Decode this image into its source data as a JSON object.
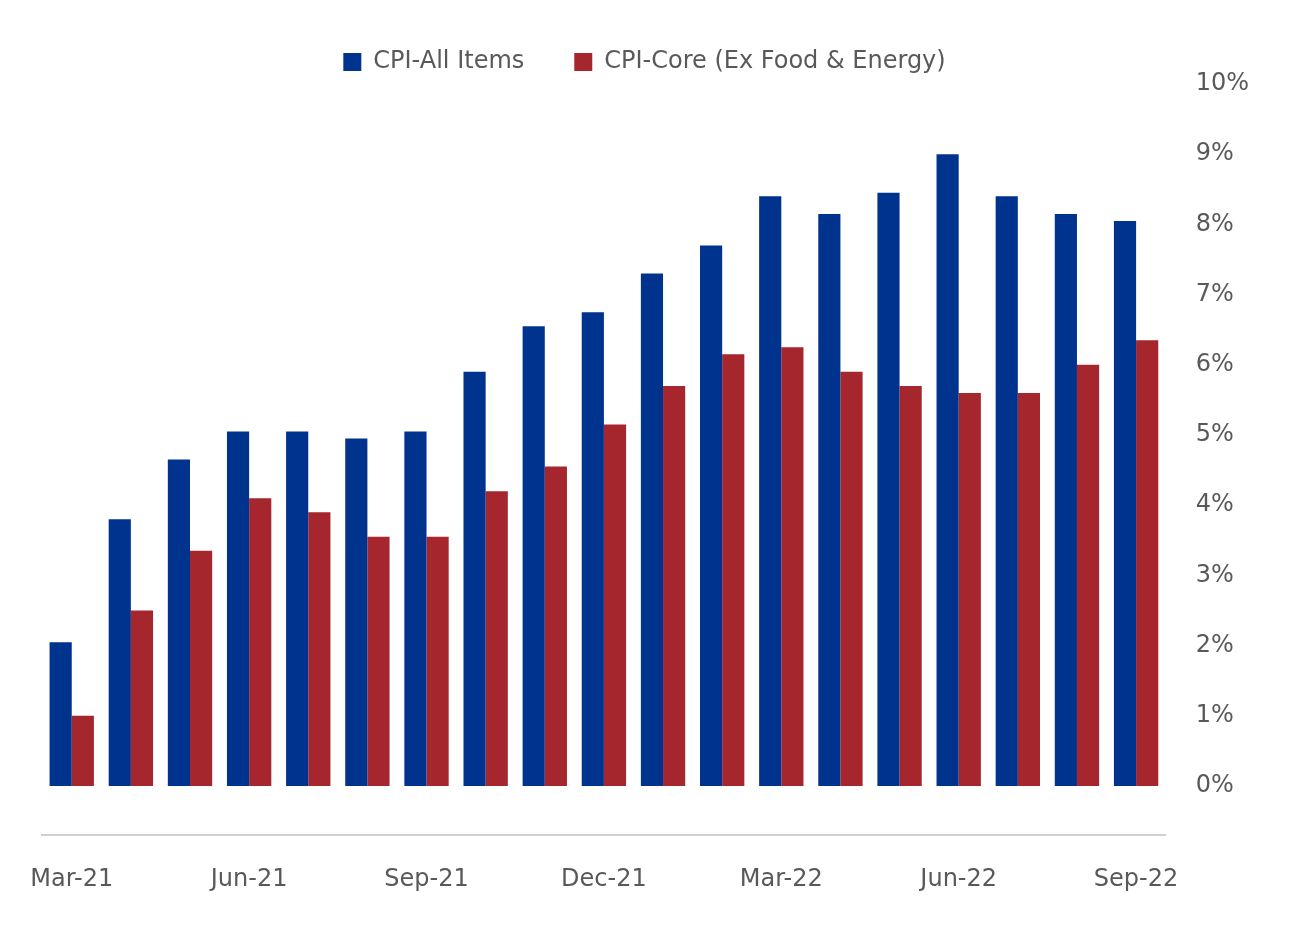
{
  "chart_data": {
    "type": "bar",
    "categories": [
      "Mar-21",
      null,
      null,
      "Jun-21",
      null,
      null,
      "Sep-21",
      null,
      null,
      "Dec-21",
      null,
      null,
      "Mar-22",
      null,
      null,
      "Jun-22",
      null,
      null,
      "Sep-22"
    ],
    "series": [
      {
        "name": "CPI-All Items",
        "color": "#00338d",
        "values": [
          2.05,
          3.8,
          4.65,
          5.05,
          5.05,
          4.95,
          5.05,
          5.9,
          6.55,
          6.75,
          7.3,
          7.7,
          8.4,
          8.15,
          8.45,
          9.0,
          8.4,
          8.15,
          8.05
        ]
      },
      {
        "name": "CPI-Core (Ex Food & Energy)",
        "color": "#a6262e",
        "values": [
          1.0,
          2.5,
          3.35,
          4.1,
          3.9,
          3.55,
          3.55,
          4.2,
          4.55,
          5.15,
          5.7,
          6.15,
          6.25,
          5.9,
          5.7,
          5.6,
          5.6,
          6.0,
          6.35
        ]
      }
    ],
    "ylim": [
      -0.7,
      10
    ],
    "yticks": [
      {
        "value": 0,
        "label": "0%"
      },
      {
        "value": 1,
        "label": "1%"
      },
      {
        "value": 2,
        "label": "2%"
      },
      {
        "value": 3,
        "label": "3%"
      },
      {
        "value": 4,
        "label": "4%"
      },
      {
        "value": 5,
        "label": "5%"
      },
      {
        "value": 6,
        "label": "6%"
      },
      {
        "value": 7,
        "label": "7%"
      },
      {
        "value": 8,
        "label": "8%"
      },
      {
        "value": 9,
        "label": "9%"
      },
      {
        "value": 10,
        "label": "10%"
      }
    ],
    "grid": false,
    "legend": "top"
  }
}
